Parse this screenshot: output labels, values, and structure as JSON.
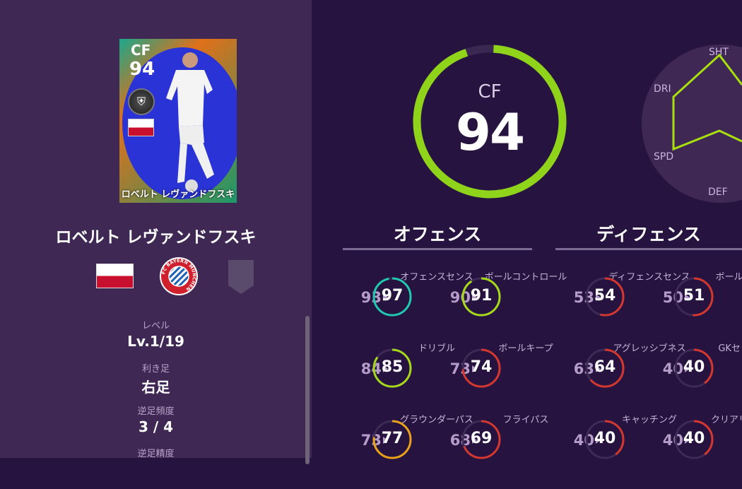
{
  "card": {
    "position": "CF",
    "overall": "94",
    "name": "ロベルト レヴァンドフスキ",
    "badge_icon": "club-crest-icon",
    "nationality_flag": "poland-flag"
  },
  "player": {
    "name": "ロベルト レヴァンドフスキ",
    "club_logo": "fc-bayern-munchen-logo",
    "club_logo_text": "FC BAYERN MÜNCHEN",
    "team_emblem": "empty-emblem-icon"
  },
  "info": [
    {
      "label": "レベル",
      "value": "Lv.1/19"
    },
    {
      "label": "利き足",
      "value": "右足"
    },
    {
      "label": "逆足頻度",
      "value": "3 / 4"
    },
    {
      "label": "逆足精度",
      "value": ""
    }
  ],
  "overall": {
    "position": "CF",
    "rating": "94",
    "ring_color": "#8fd41a"
  },
  "radar": {
    "labels": [
      "SHT",
      "DRI",
      "SPD",
      "DEF"
    ],
    "color": "#a8e00f"
  },
  "offense": {
    "title": "オフェンス",
    "stats": [
      {
        "label": "オフェンスセンス",
        "prev": "93",
        "value": "97"
      },
      {
        "label": "ボールコントロール",
        "prev": "90",
        "value": "91"
      },
      {
        "label": "ドリブル",
        "prev": "84",
        "value": "85"
      },
      {
        "label": "ボールキープ",
        "prev": "73",
        "value": "74"
      },
      {
        "label": "グラウンダーパス",
        "prev": "73",
        "value": "77"
      },
      {
        "label": "フライパス",
        "prev": "68",
        "value": "69"
      }
    ]
  },
  "defense": {
    "title": "ディフェンス",
    "stats": [
      {
        "label": "ディフェンスセンス",
        "prev": "53",
        "value": "54"
      },
      {
        "label": "ボール奪取",
        "prev": "50",
        "value": "51"
      },
      {
        "label": "アグレッシブネス",
        "prev": "63",
        "value": "64"
      },
      {
        "label": "GKセンス",
        "prev": "40",
        "value": "40"
      },
      {
        "label": "キャッチング",
        "prev": "40",
        "value": "40"
      },
      {
        "label": "クリアリング",
        "prev": "40",
        "value": "40"
      }
    ]
  },
  "colors": {
    "elite": "#1fc9b0",
    "great": "#a5d91a",
    "good": "#e8a21a",
    "low": "#d3382e",
    "left_panel": "#3f2853",
    "right_panel": "#27133f"
  }
}
